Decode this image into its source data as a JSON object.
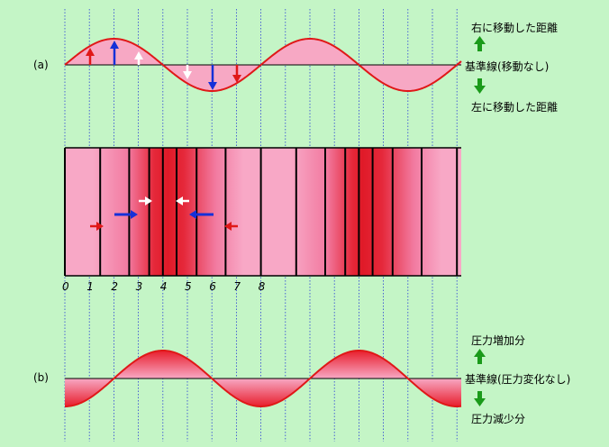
{
  "panel_a": {
    "label": "(a)",
    "right_move": "右に移動した距離",
    "baseline": "基準線(移動なし)",
    "left_move": "左に移動した距離"
  },
  "panel_b": {
    "label": "(b)",
    "pressure_up": "圧力増加分",
    "baseline": "基準線(圧力変化なし)",
    "pressure_down": "圧力減少分"
  },
  "position_numbers": [
    "0",
    "1",
    "2",
    "3",
    "4",
    "5",
    "6",
    "7",
    "8"
  ],
  "colors": {
    "background": "#c4f5c6",
    "wave_line": "#e01818",
    "wave_fill": "#f6a0c0",
    "compression": "#e8202c",
    "guide_line": "#2b3fd6",
    "arrow_green": "#1a9a1a",
    "arrow_red": "#e01818",
    "arrow_blue": "#1530d8",
    "arrow_white": "#ffffff"
  }
}
